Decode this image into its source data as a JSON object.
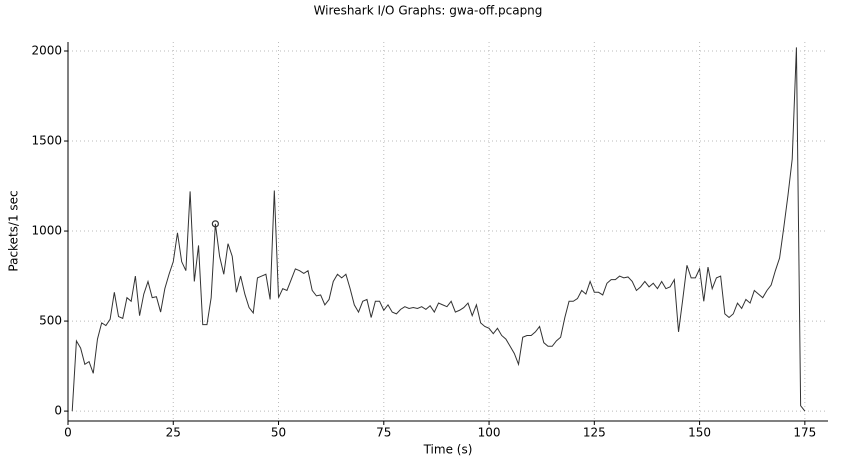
{
  "chart_data": {
    "type": "line",
    "title": "Wireshark I/O Graphs: gwa-off.pcapng",
    "x_label": "Time (s)",
    "y_label": "Packets/1 sec",
    "color": "#333333",
    "grid": true,
    "highlight_x": 35,
    "xlim": [
      0,
      180.5
    ],
    "ylim": [
      -55,
      2050
    ],
    "xticks": [
      0,
      25,
      50,
      75,
      100,
      125,
      150,
      175
    ],
    "yticks": [
      0,
      500,
      1000,
      1500,
      2000
    ],
    "x": [
      1,
      2,
      3,
      4,
      5,
      6,
      7,
      8,
      9,
      10,
      11,
      12,
      13,
      14,
      15,
      16,
      17,
      18,
      19,
      20,
      21,
      22,
      23,
      24,
      25,
      26,
      27,
      28,
      29,
      30,
      31,
      32,
      33,
      34,
      35,
      36,
      37,
      38,
      39,
      40,
      41,
      42,
      43,
      44,
      45,
      46,
      47,
      48,
      49,
      50,
      51,
      52,
      53,
      54,
      55,
      56,
      57,
      58,
      59,
      60,
      61,
      62,
      63,
      64,
      65,
      66,
      67,
      68,
      69,
      70,
      71,
      72,
      73,
      74,
      75,
      76,
      77,
      78,
      79,
      80,
      81,
      82,
      83,
      84,
      85,
      86,
      87,
      88,
      89,
      90,
      91,
      92,
      93,
      94,
      95,
      96,
      97,
      98,
      99,
      100,
      101,
      102,
      103,
      104,
      105,
      106,
      107,
      108,
      109,
      110,
      111,
      112,
      113,
      114,
      115,
      116,
      117,
      118,
      119,
      120,
      121,
      122,
      123,
      124,
      125,
      126,
      127,
      128,
      129,
      130,
      131,
      132,
      133,
      134,
      135,
      136,
      137,
      138,
      139,
      140,
      141,
      142,
      143,
      144,
      145,
      146,
      147,
      148,
      149,
      150,
      151,
      152,
      153,
      154,
      155,
      156,
      157,
      158,
      159,
      160,
      161,
      162,
      163,
      164,
      165,
      166,
      167,
      168,
      169,
      170,
      171,
      172,
      173,
      174,
      175
    ],
    "values": [
      0,
      390,
      350,
      260,
      275,
      210,
      400,
      490,
      475,
      510,
      660,
      525,
      515,
      630,
      610,
      750,
      530,
      650,
      720,
      630,
      635,
      550,
      680,
      760,
      830,
      990,
      830,
      780,
      1220,
      720,
      920,
      480,
      480,
      630,
      1040,
      860,
      760,
      930,
      860,
      660,
      750,
      650,
      575,
      545,
      740,
      750,
      760,
      620,
      1225,
      630,
      680,
      670,
      730,
      790,
      780,
      765,
      780,
      670,
      640,
      645,
      590,
      620,
      720,
      760,
      740,
      760,
      680,
      590,
      550,
      610,
      620,
      520,
      610,
      610,
      560,
      590,
      550,
      540,
      565,
      580,
      570,
      575,
      570,
      580,
      565,
      585,
      550,
      600,
      590,
      580,
      610,
      550,
      560,
      575,
      600,
      530,
      590,
      490,
      470,
      460,
      430,
      460,
      420,
      400,
      360,
      320,
      260,
      410,
      420,
      420,
      440,
      470,
      380,
      360,
      360,
      390,
      410,
      520,
      610,
      610,
      625,
      670,
      650,
      720,
      660,
      660,
      645,
      710,
      730,
      730,
      750,
      740,
      745,
      720,
      670,
      690,
      720,
      690,
      710,
      680,
      720,
      680,
      690,
      730,
      440,
      620,
      810,
      740,
      740,
      790,
      610,
      800,
      680,
      740,
      750,
      540,
      520,
      540,
      600,
      570,
      620,
      600,
      670,
      650,
      630,
      670,
      700,
      780,
      850,
      1020,
      1200,
      1400,
      2020,
      30,
      0
    ]
  }
}
